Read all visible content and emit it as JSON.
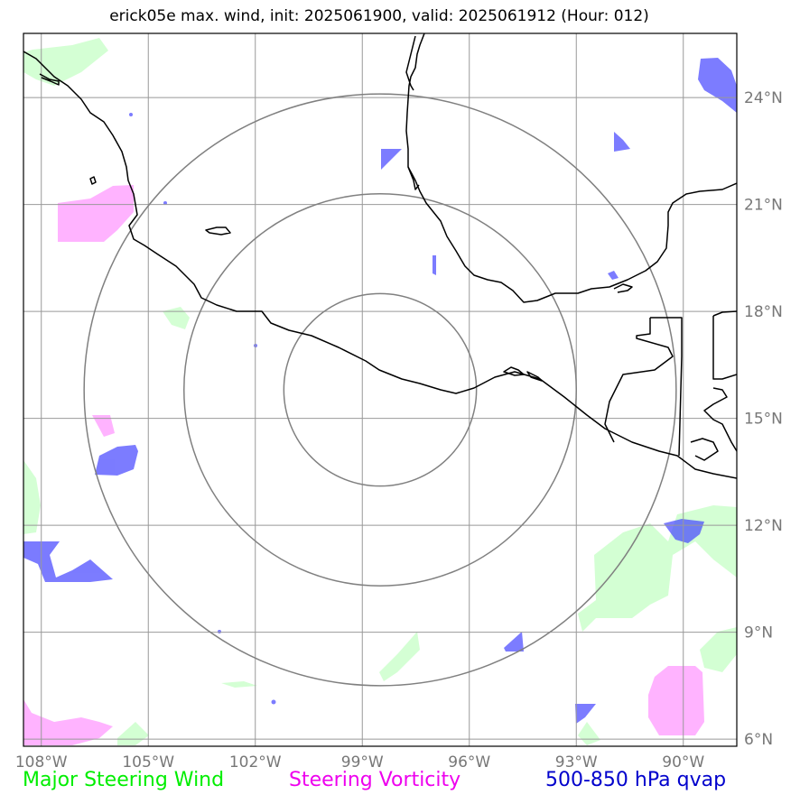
{
  "title": "erick05e max. wind, init: 2025061900, valid: 2025061912 (Hour: 012)",
  "map": {
    "lon_range": [
      -108.5,
      -88.5
    ],
    "lat_range": [
      5.8,
      25.8
    ],
    "center": {
      "lon": -98.5,
      "lat": 15.8
    },
    "range_rings_deg": [
      2.7,
      5.5,
      8.3
    ],
    "lon_ticks": [
      {
        "value": -108,
        "label": "108°W"
      },
      {
        "value": -105,
        "label": "105°W"
      },
      {
        "value": -102,
        "label": "102°W"
      },
      {
        "value": -99,
        "label": "99°W"
      },
      {
        "value": -96,
        "label": "96°W"
      },
      {
        "value": -93,
        "label": "93°W"
      },
      {
        "value": -90,
        "label": "90°W"
      }
    ],
    "lat_ticks": [
      {
        "value": 6,
        "label": "6°N"
      },
      {
        "value": 9,
        "label": "9°N"
      },
      {
        "value": 12,
        "label": "12°N"
      },
      {
        "value": 15,
        "label": "15°N"
      },
      {
        "value": 18,
        "label": "18°N"
      },
      {
        "value": 21,
        "label": "21°N"
      },
      {
        "value": 24,
        "label": "24°N"
      }
    ],
    "colors": {
      "major_steering_wind": "#ccffcc",
      "steering_vorticity": "#ff99ff",
      "qvap": "#4444ff",
      "coast": "#000000",
      "grid": "#999999",
      "rings": "#808080"
    }
  },
  "legend": {
    "wind": "Major Steering Wind",
    "vorticity": "Steering Vorticity",
    "qvap": "500-850 hPa qvap"
  }
}
